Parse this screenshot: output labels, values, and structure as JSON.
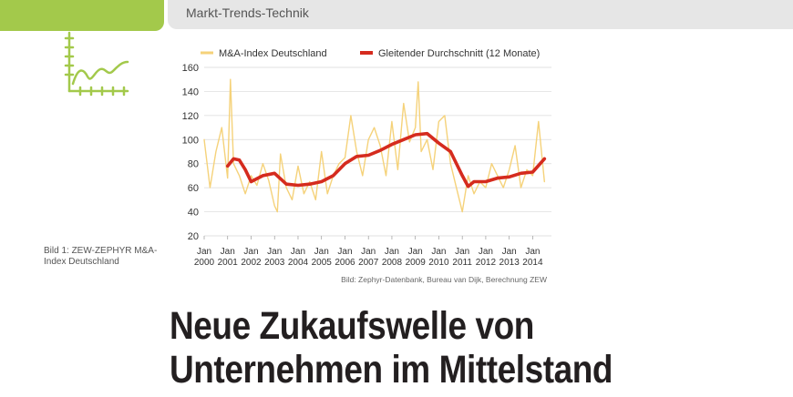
{
  "header": {
    "section": "Markt-Trends-Technik"
  },
  "figure": {
    "caption": "Bild 1: ZEW-ZEPHYR M&A-Index Deutschland",
    "source": "Bild: Zephyr-Datenbank, Bureau van Dijk, Berechnung ZEW"
  },
  "headline": {
    "line1": "Neue Zukaufswelle von",
    "line2": "Unternehmen im Mittelstand"
  },
  "colors": {
    "accent_green": "#a3c94b",
    "index_line": "#f5d27a",
    "average_line": "#d52b1e"
  },
  "chart_data": {
    "type": "line",
    "title": "",
    "xlabel": "",
    "ylabel": "",
    "ylim": [
      20,
      160
    ],
    "yticks": [
      "20",
      "40",
      "60",
      "80",
      "100",
      "120",
      "140",
      "160"
    ],
    "xticks": [
      {
        "top": "Jan",
        "bottom": "2000"
      },
      {
        "top": "Jan",
        "bottom": "2001"
      },
      {
        "top": "Jan",
        "bottom": "2002"
      },
      {
        "top": "Jan",
        "bottom": "2003"
      },
      {
        "top": "Jan",
        "bottom": "2004"
      },
      {
        "top": "Jan",
        "bottom": "2005"
      },
      {
        "top": "Jan",
        "bottom": "2006"
      },
      {
        "top": "Jan",
        "bottom": "2007"
      },
      {
        "top": "Jan",
        "bottom": "2008"
      },
      {
        "top": "Jan",
        "bottom": "2009"
      },
      {
        "top": "Jan",
        "bottom": "2010"
      },
      {
        "top": "Jan",
        "bottom": "2011"
      },
      {
        "top": "Jan",
        "bottom": "2012"
      },
      {
        "top": "Jan",
        "bottom": "2013"
      },
      {
        "top": "Jan",
        "bottom": "2014"
      }
    ],
    "legend_position": "top",
    "grid": "horizontal",
    "series": [
      {
        "name": "M&A-Index Deutschland",
        "x": [
          2000.0,
          2000.25,
          2000.5,
          2000.75,
          2001.0,
          2001.12,
          2001.25,
          2001.5,
          2001.75,
          2002.0,
          2002.25,
          2002.5,
          2002.75,
          2003.0,
          2003.12,
          2003.25,
          2003.5,
          2003.75,
          2004.0,
          2004.25,
          2004.5,
          2004.75,
          2005.0,
          2005.25,
          2005.5,
          2005.75,
          2006.0,
          2006.25,
          2006.5,
          2006.75,
          2007.0,
          2007.25,
          2007.5,
          2007.75,
          2008.0,
          2008.25,
          2008.5,
          2008.75,
          2009.0,
          2009.12,
          2009.25,
          2009.5,
          2009.75,
          2010.0,
          2010.25,
          2010.5,
          2010.75,
          2011.0,
          2011.25,
          2011.5,
          2011.75,
          2012.0,
          2012.25,
          2012.5,
          2012.75,
          2013.0,
          2013.25,
          2013.5,
          2013.75,
          2014.0,
          2014.25,
          2014.5
        ],
        "y": [
          100,
          60,
          90,
          110,
          68,
          150,
          80,
          70,
          55,
          70,
          62,
          80,
          66,
          45,
          40,
          88,
          60,
          50,
          78,
          55,
          65,
          50,
          90,
          55,
          70,
          80,
          85,
          120,
          90,
          70,
          100,
          110,
          95,
          70,
          115,
          75,
          130,
          98,
          110,
          148,
          90,
          100,
          75,
          115,
          120,
          80,
          60,
          40,
          70,
          55,
          65,
          60,
          80,
          70,
          60,
          75,
          95,
          60,
          75,
          70,
          115,
          65
        ]
      },
      {
        "name": "Gleitender Durchschnitt (12 Monate)",
        "x": [
          2001.0,
          2001.25,
          2001.5,
          2001.75,
          2002.0,
          2002.5,
          2003.0,
          2003.5,
          2004.0,
          2004.5,
          2005.0,
          2005.5,
          2006.0,
          2006.5,
          2007.0,
          2007.5,
          2008.0,
          2008.5,
          2009.0,
          2009.5,
          2010.0,
          2010.5,
          2011.0,
          2011.25,
          2011.5,
          2012.0,
          2012.5,
          2013.0,
          2013.5,
          2014.0,
          2014.5
        ],
        "y": [
          78,
          84,
          83,
          75,
          65,
          70,
          72,
          63,
          62,
          63,
          65,
          70,
          80,
          86,
          87,
          91,
          96,
          100,
          104,
          105,
          97,
          90,
          70,
          61,
          65,
          65,
          68,
          69,
          72,
          73,
          84
        ]
      }
    ]
  }
}
